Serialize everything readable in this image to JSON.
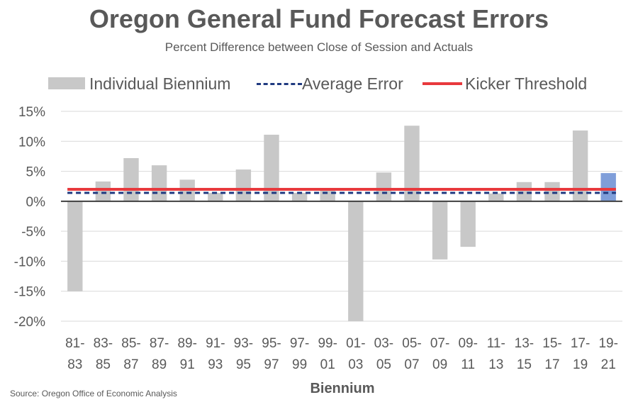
{
  "chart_data": {
    "type": "bar",
    "title": "Oregon General Fund Forecast Errors",
    "subtitle": "Percent Difference between Close of Session and Actuals",
    "xlabel": "Biennium",
    "ylabel": "",
    "categories": [
      [
        "81-",
        "83"
      ],
      [
        "83-",
        "85"
      ],
      [
        "85-",
        "87"
      ],
      [
        "87-",
        "89"
      ],
      [
        "89-",
        "91"
      ],
      [
        "91-",
        "93"
      ],
      [
        "93-",
        "95"
      ],
      [
        "95-",
        "97"
      ],
      [
        "97-",
        "99"
      ],
      [
        "99-",
        "01"
      ],
      [
        "01-",
        "03"
      ],
      [
        "03-",
        "05"
      ],
      [
        "05-",
        "07"
      ],
      [
        "07-",
        "09"
      ],
      [
        "09-",
        "11"
      ],
      [
        "11-",
        "13"
      ],
      [
        "13-",
        "15"
      ],
      [
        "15-",
        "17"
      ],
      [
        "17-",
        "19"
      ],
      [
        "19-",
        "21"
      ]
    ],
    "series": [
      {
        "name": "Individual Biennium",
        "values": [
          -15.0,
          3.3,
          7.2,
          6.0,
          3.6,
          1.4,
          5.3,
          11.1,
          1.4,
          1.9,
          -20.0,
          4.8,
          12.6,
          -9.7,
          -7.6,
          1.3,
          3.2,
          3.2,
          11.8,
          4.7
        ],
        "colors": [
          "#c8c8c8",
          "#c8c8c8",
          "#c8c8c8",
          "#c8c8c8",
          "#c8c8c8",
          "#c8c8c8",
          "#c8c8c8",
          "#c8c8c8",
          "#c8c8c8",
          "#c8c8c8",
          "#c8c8c8",
          "#c8c8c8",
          "#c8c8c8",
          "#c8c8c8",
          "#c8c8c8",
          "#c8c8c8",
          "#c8c8c8",
          "#c8c8c8",
          "#c8c8c8",
          "#7f9ed9"
        ]
      },
      {
        "name": "Average Error",
        "value": 1.4,
        "style": "dashed",
        "color": "#1f3a80"
      },
      {
        "name": "Kicker Threshold",
        "value": 2.0,
        "style": "solid",
        "color": "#e8393d"
      }
    ],
    "ylim": [
      -20,
      15
    ],
    "yticks": [
      15,
      10,
      5,
      0,
      -5,
      -10,
      -15,
      -20
    ],
    "ytick_labels": [
      "15%",
      "10%",
      "5%",
      "0%",
      "-5%",
      "-10%",
      "-15%",
      "-20%"
    ],
    "grid": true,
    "legend_position": "top"
  },
  "source": "Source: Oregon Office of Economic Analysis"
}
